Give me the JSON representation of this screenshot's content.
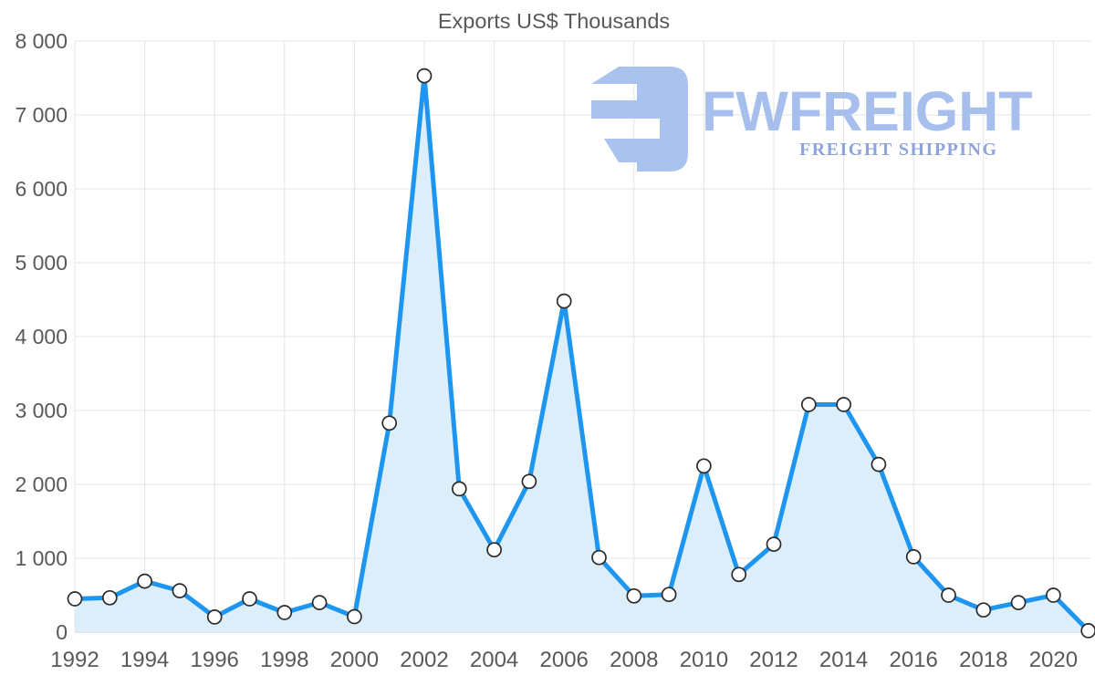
{
  "title": "Exports US$ Thousands",
  "logo": {
    "brand": "FWFREIGHT",
    "tagline": "FREIGHT SHIPPING"
  },
  "colors": {
    "line": "#1e96f0",
    "area_fill": "#ddeefb",
    "grid": "#e4e4e4",
    "axis_line": "#c9c9c9",
    "axis_text": "#595959",
    "marker_fill": "#ffffff",
    "marker_stroke": "#2a2a2a",
    "logo_main": "#a9c2ee",
    "logo_tagline": "#8da5dc"
  },
  "chart_data": {
    "type": "area",
    "title": "Exports US$ Thousands",
    "x": [
      1992,
      1993,
      1994,
      1995,
      1996,
      1997,
      1998,
      1999,
      2000,
      2001,
      2002,
      2003,
      2004,
      2005,
      2006,
      2007,
      2008,
      2009,
      2010,
      2011,
      2012,
      2013,
      2014,
      2015,
      2016,
      2017,
      2018,
      2019,
      2020,
      2021
    ],
    "values": [
      450,
      465,
      690,
      560,
      205,
      450,
      265,
      400,
      210,
      2830,
      7530,
      1940,
      1115,
      2040,
      4480,
      1010,
      490,
      510,
      2250,
      780,
      1190,
      3080,
      3080,
      2270,
      1020,
      500,
      300,
      400,
      500,
      20
    ],
    "ylim": [
      0,
      8000
    ],
    "y_ticks": [
      0,
      1000,
      2000,
      3000,
      4000,
      5000,
      6000,
      7000,
      8000
    ],
    "y_tick_labels": [
      "0",
      "1 000",
      "2 000",
      "3 000",
      "4 000",
      "5 000",
      "6 000",
      "7 000",
      "8 000"
    ],
    "x_ticks": [
      1992,
      1994,
      1996,
      1998,
      2000,
      2002,
      2004,
      2006,
      2008,
      2010,
      2012,
      2014,
      2016,
      2018,
      2020
    ],
    "grid": true,
    "legend": false
  }
}
